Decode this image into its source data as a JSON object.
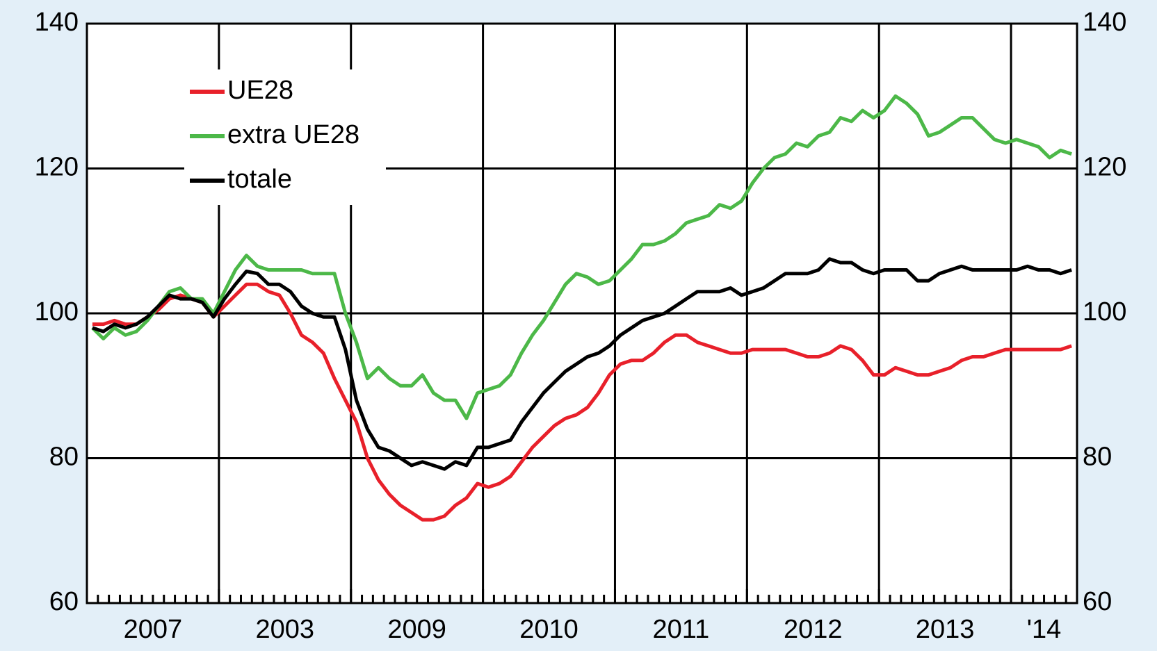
{
  "chart_data": {
    "type": "line",
    "categories": [
      null,
      null,
      null,
      null,
      null,
      null,
      "2007",
      null,
      null,
      null,
      null,
      null,
      null,
      null,
      null,
      null,
      null,
      null,
      "2003",
      null,
      null,
      null,
      null,
      null,
      null,
      null,
      null,
      null,
      null,
      null,
      "2009",
      null,
      null,
      null,
      null,
      null,
      null,
      null,
      null,
      null,
      null,
      null,
      "2010",
      null,
      null,
      null,
      null,
      null,
      null,
      null,
      null,
      null,
      null,
      null,
      "2011",
      null,
      null,
      null,
      null,
      null,
      null,
      null,
      null,
      null,
      null,
      null,
      "2012",
      null,
      null,
      null,
      null,
      null,
      null,
      null,
      null,
      null,
      null,
      null,
      "2013",
      null,
      null,
      null,
      null,
      null,
      null,
      null,
      null,
      "'14",
      null,
      null
    ],
    "series": [
      {
        "name": "UE28",
        "color": "#e8202a",
        "values": [
          98.5,
          98.5,
          99,
          98.5,
          98.5,
          99.5,
          100.5,
          102,
          102.5,
          102,
          101.5,
          99.5,
          101,
          102.5,
          104,
          104,
          103,
          102.5,
          100,
          97,
          96,
          94.5,
          91,
          88,
          85,
          80,
          77,
          75,
          73.5,
          72.5,
          71.5,
          71.5,
          72,
          73.5,
          74.5,
          76.5,
          76,
          76.5,
          77.5,
          79.5,
          81.5,
          83,
          84.5,
          85.5,
          86,
          87,
          89,
          91.5,
          93,
          93.5,
          93.5,
          94.5,
          96,
          97,
          97,
          96,
          95.5,
          95,
          94.5,
          94.5,
          95,
          95,
          95,
          95,
          94.5,
          94,
          94,
          94.5,
          95.5,
          95,
          93.5,
          91.5,
          91.5,
          92.5,
          92,
          91.5,
          91.5,
          92,
          92.5,
          93.5,
          94,
          94,
          94.5,
          95,
          95,
          95,
          95,
          95,
          95,
          95.5
        ]
      },
      {
        "name": "extra UE28",
        "color": "#4cb848",
        "values": [
          98,
          96.5,
          98,
          97,
          97.5,
          99,
          101,
          103,
          103.5,
          102,
          102,
          100,
          103,
          106,
          108,
          106.5,
          106,
          106,
          106,
          106,
          105.5,
          105.5,
          105.5,
          100,
          96,
          91,
          92.5,
          91,
          90,
          90,
          91.5,
          89,
          88,
          88,
          85.5,
          89,
          89.5,
          90,
          91.5,
          94.5,
          97,
          99,
          101.5,
          104,
          105.5,
          105,
          104,
          104.5,
          106,
          107.5,
          109.5,
          109.5,
          110,
          111,
          112.5,
          113,
          113.5,
          115,
          114.5,
          115.5,
          118,
          120,
          121.5,
          122,
          123.5,
          123,
          124.5,
          125,
          127,
          126.5,
          128,
          127,
          128,
          130,
          129,
          127.5,
          124.5,
          125,
          126,
          127,
          127,
          125.5,
          124,
          123.5,
          124,
          123.5,
          123,
          121.5,
          122.5,
          122
        ]
      },
      {
        "name": "totale",
        "color": "#000000",
        "values": [
          98,
          97.5,
          98.5,
          98,
          98.5,
          99.5,
          101,
          102.5,
          102,
          102,
          101.5,
          99.5,
          102,
          104,
          105.8,
          105.5,
          104,
          104,
          103,
          101,
          100,
          99.5,
          99.5,
          95,
          88,
          84,
          81.5,
          81,
          80,
          79,
          79.5,
          79,
          78.5,
          79.5,
          79,
          81.5,
          81.5,
          82,
          82.5,
          85,
          87,
          89,
          90.5,
          92,
          93,
          94,
          94.5,
          95.5,
          97,
          98,
          99,
          99.5,
          100,
          101,
          102,
          103,
          103,
          103,
          103.5,
          102.5,
          103,
          103.5,
          104.5,
          105.5,
          105.5,
          105.5,
          106,
          107.5,
          107,
          107,
          106,
          105.5,
          106,
          106,
          106,
          104.5,
          104.5,
          105.5,
          106,
          106.5,
          106,
          106,
          106,
          106,
          106,
          106.5,
          106,
          106,
          105.5,
          106
        ]
      }
    ],
    "ylim": [
      60,
      140
    ],
    "yticks": [
      60,
      80,
      100,
      120,
      140
    ],
    "y2lim": [
      60,
      140
    ],
    "y2ticks": [
      60,
      80,
      100,
      120,
      140
    ],
    "grid": true,
    "legend": "upper left"
  }
}
